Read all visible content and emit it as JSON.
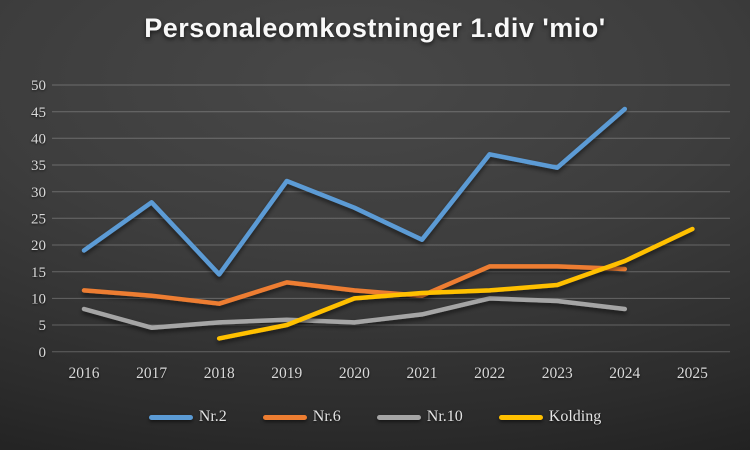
{
  "slide": {
    "background_center_color": "#484848",
    "background_edge_color": "#1b1b1b"
  },
  "chart_data": {
    "type": "line",
    "title": "Personaleomkostninger 1.div 'mio'",
    "title_color": "#f8f8f8",
    "categories": [
      "2016",
      "2017",
      "2018",
      "2019",
      "2020",
      "2021",
      "2022",
      "2023",
      "2024",
      "2025"
    ],
    "yticks": [
      0,
      5,
      10,
      15,
      20,
      25,
      30,
      35,
      40,
      45,
      50
    ],
    "ylim": [
      0,
      50
    ],
    "grid": "horizontal-only",
    "gridline_color": "rgba(255,255,255,0.24)",
    "tick_text_color": "#d9d9d9",
    "legend_position": "bottom",
    "series": [
      {
        "name": "Nr.2",
        "color": "#5B9BD5",
        "values": [
          19,
          28,
          14.5,
          32,
          27,
          21,
          37,
          34.5,
          45.5,
          null
        ]
      },
      {
        "name": "Nr.6",
        "color": "#ED7D31",
        "values": [
          11.5,
          10.5,
          9,
          13,
          11.5,
          10.5,
          16,
          16,
          15.5,
          null
        ]
      },
      {
        "name": "Nr.10",
        "color": "#A5A5A5",
        "values": [
          8,
          4.5,
          5.5,
          6,
          5.5,
          7,
          10,
          9.5,
          8,
          null
        ]
      },
      {
        "name": "Kolding",
        "color": "#FFC000",
        "values": [
          null,
          null,
          2.5,
          5,
          10,
          11,
          11.5,
          12.5,
          17,
          23
        ]
      }
    ]
  }
}
